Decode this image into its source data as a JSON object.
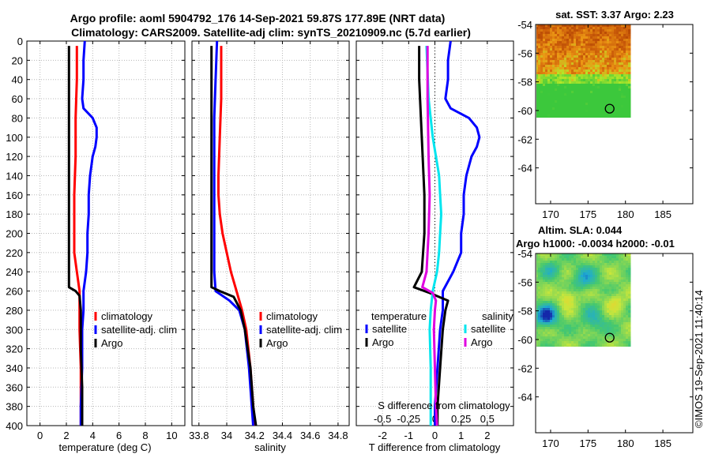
{
  "title": {
    "line1": "Argo profile: aoml 5904792_176 14-Sep-2021 59.87S 177.89E (NRT data)",
    "line2": "Climatology: CARS2009. Satellite-adj clim: synTS_20210909.nc (5.7d earlier)"
  },
  "copyright": "©IMOS 19-Sep-2021 11:40:14",
  "colors": {
    "climatology": "#ff0000",
    "satellite": "#0000ff",
    "argo": "#000000",
    "sat_salinity": "#00e5ee",
    "argo_salinity": "#e000e0"
  },
  "chart_data": [
    {
      "type": "line",
      "name": "temperature",
      "xlabel": "temperature (deg C)",
      "ylabel": "",
      "xlim": [
        -1,
        11
      ],
      "ylim": [
        0,
        400
      ],
      "xticks": [
        0,
        2,
        4,
        6,
        8,
        10
      ],
      "yticks": [
        0,
        20,
        40,
        60,
        80,
        100,
        120,
        140,
        160,
        180,
        200,
        220,
        240,
        260,
        280,
        300,
        320,
        340,
        360,
        380,
        400
      ],
      "grid": true,
      "legend": {
        "position": "middle-right",
        "entries": [
          "climatology",
          "satellite-adj. clim",
          "Argo"
        ]
      },
      "series": [
        {
          "name": "climatology",
          "color": "#ff0000",
          "points": [
            [
              2.8,
              5
            ],
            [
              2.8,
              40
            ],
            [
              2.7,
              80
            ],
            [
              2.7,
              120
            ],
            [
              2.6,
              160
            ],
            [
              2.6,
              200
            ],
            [
              2.6,
              220
            ],
            [
              2.8,
              240
            ],
            [
              3.0,
              260
            ],
            [
              3.0,
              280
            ],
            [
              3.0,
              300
            ],
            [
              3.1,
              340
            ],
            [
              3.1,
              380
            ],
            [
              3.1,
              400
            ]
          ]
        },
        {
          "name": "satellite-adj. clim",
          "color": "#0000ff",
          "points": [
            [
              3.4,
              0
            ],
            [
              3.3,
              20
            ],
            [
              3.3,
              40
            ],
            [
              3.2,
              60
            ],
            [
              3.3,
              70
            ],
            [
              4.0,
              80
            ],
            [
              4.3,
              90
            ],
            [
              4.3,
              100
            ],
            [
              4.2,
              110
            ],
            [
              4.0,
              120
            ],
            [
              3.8,
              140
            ],
            [
              3.7,
              160
            ],
            [
              3.7,
              180
            ],
            [
              3.6,
              200
            ],
            [
              3.6,
              220
            ],
            [
              3.5,
              240
            ],
            [
              3.3,
              260
            ],
            [
              3.3,
              280
            ],
            [
              3.2,
              300
            ],
            [
              3.2,
              340
            ],
            [
              3.1,
              380
            ],
            [
              3.1,
              400
            ]
          ]
        },
        {
          "name": "Argo",
          "color": "#000000",
          "points": [
            [
              2.2,
              5
            ],
            [
              2.2,
              100
            ],
            [
              2.2,
              200
            ],
            [
              2.2,
              250
            ],
            [
              2.2,
              256
            ],
            [
              2.7,
              260
            ],
            [
              3.0,
              265
            ],
            [
              3.1,
              280
            ],
            [
              3.1,
              320
            ],
            [
              3.2,
              360
            ],
            [
              3.2,
              400
            ]
          ]
        }
      ]
    },
    {
      "type": "line",
      "name": "salinity",
      "xlabel": "salinity",
      "ylabel": "",
      "xlim": [
        33.75,
        34.88
      ],
      "ylim": [
        0,
        400
      ],
      "xticks": [
        33.8,
        34,
        34.2,
        34.4,
        34.6,
        34.8
      ],
      "xtick_labels": [
        "33.8",
        "34",
        "34.2",
        "34.4",
        "34.6",
        "34.8"
      ],
      "grid": true,
      "legend": {
        "position": "middle-right",
        "entries": [
          "climatology",
          "satellite-adj. clim",
          "Argo"
        ]
      },
      "series": [
        {
          "name": "climatology",
          "color": "#ff0000",
          "points": [
            [
              33.96,
              5
            ],
            [
              33.96,
              60
            ],
            [
              33.95,
              100
            ],
            [
              33.94,
              140
            ],
            [
              33.94,
              160
            ],
            [
              33.95,
              180
            ],
            [
              33.97,
              200
            ],
            [
              34.0,
              220
            ],
            [
              34.03,
              240
            ],
            [
              34.07,
              260
            ],
            [
              34.11,
              280
            ],
            [
              34.14,
              300
            ],
            [
              34.17,
              340
            ],
            [
              34.19,
              380
            ],
            [
              34.2,
              400
            ]
          ]
        },
        {
          "name": "satellite-adj. clim",
          "color": "#0000ff",
          "points": [
            [
              33.93,
              0
            ],
            [
              33.92,
              40
            ],
            [
              33.91,
              80
            ],
            [
              33.91,
              140
            ],
            [
              33.91,
              200
            ],
            [
              33.91,
              240
            ],
            [
              33.92,
              260
            ],
            [
              34.02,
              270
            ],
            [
              34.09,
              280
            ],
            [
              34.13,
              300
            ],
            [
              34.16,
              340
            ],
            [
              34.18,
              380
            ],
            [
              34.19,
              400
            ]
          ]
        },
        {
          "name": "Argo",
          "color": "#000000",
          "points": [
            [
              33.89,
              5
            ],
            [
              33.89,
              60
            ],
            [
              33.89,
              120
            ],
            [
              33.89,
              200
            ],
            [
              33.89,
              250
            ],
            [
              33.89,
              256
            ],
            [
              33.95,
              260
            ],
            [
              34.05,
              266
            ],
            [
              34.1,
              280
            ],
            [
              34.13,
              300
            ],
            [
              34.17,
              340
            ],
            [
              34.19,
              380
            ],
            [
              34.21,
              400
            ]
          ]
        }
      ]
    },
    {
      "type": "line",
      "name": "difference",
      "xlabel": "T difference from climatology",
      "xlabel_top": "S difference from climatology",
      "xlim": [
        -3,
        3
      ],
      "ylim": [
        0,
        400
      ],
      "xticks": [
        -2,
        -1,
        0,
        1,
        2
      ],
      "xticks_salinity": [
        -0.5,
        -0.25,
        0,
        0.25,
        0.5
      ],
      "xtick_labels_salinity": [
        "-0.5",
        "-0.25",
        "0",
        "0.25",
        "0.5"
      ],
      "grid": true,
      "legend": {
        "position": "middle",
        "entries_temperature": [
          "satellite",
          "Argo"
        ],
        "entries_salinity": [
          "satellite",
          "Argo"
        ],
        "head_temperature": "temperature",
        "head_salinity": "salinity"
      },
      "series": [
        {
          "name": "T satellite",
          "color": "#0000ff",
          "points": [
            [
              0.6,
              0
            ],
            [
              0.5,
              20
            ],
            [
              0.5,
              40
            ],
            [
              0.4,
              60
            ],
            [
              0.6,
              70
            ],
            [
              1.3,
              80
            ],
            [
              1.6,
              90
            ],
            [
              1.7,
              100
            ],
            [
              1.6,
              110
            ],
            [
              1.4,
              120
            ],
            [
              1.2,
              140
            ],
            [
              1.1,
              160
            ],
            [
              1.1,
              180
            ],
            [
              1.0,
              200
            ],
            [
              1.0,
              220
            ],
            [
              0.7,
              240
            ],
            [
              0.3,
              260
            ],
            [
              0.3,
              280
            ],
            [
              0.2,
              300
            ],
            [
              0.1,
              340
            ],
            [
              0.0,
              380
            ],
            [
              0.0,
              400
            ]
          ]
        },
        {
          "name": "T Argo",
          "color": "#000000",
          "points": [
            [
              -0.6,
              5
            ],
            [
              -0.6,
              40
            ],
            [
              -0.5,
              100
            ],
            [
              -0.4,
              160
            ],
            [
              -0.4,
              200
            ],
            [
              -0.5,
              240
            ],
            [
              -0.8,
              256
            ],
            [
              -0.2,
              262
            ],
            [
              0.5,
              270
            ],
            [
              0.4,
              280
            ],
            [
              0.3,
              300
            ],
            [
              0.2,
              340
            ],
            [
              0.1,
              380
            ],
            [
              0.1,
              400
            ]
          ]
        },
        {
          "name": "S satellite",
          "color": "#00e5ee",
          "points": [
            [
              -0.08,
              5
            ],
            [
              -0.06,
              60
            ],
            [
              -0.02,
              100
            ],
            [
              0.04,
              140
            ],
            [
              0.05,
              160
            ],
            [
              0.06,
              180
            ],
            [
              0.05,
              200
            ],
            [
              0.04,
              220
            ],
            [
              0.02,
              240
            ],
            [
              -0.02,
              260
            ],
            [
              -0.04,
              280
            ],
            [
              -0.05,
              300
            ],
            [
              -0.04,
              340
            ],
            [
              -0.04,
              380
            ],
            [
              -0.04,
              400
            ]
          ]
        },
        {
          "name": "S Argo",
          "color": "#e000e0",
          "points": [
            [
              -0.07,
              5
            ],
            [
              -0.07,
              60
            ],
            [
              -0.06,
              120
            ],
            [
              -0.05,
              160
            ],
            [
              -0.06,
              200
            ],
            [
              -0.08,
              240
            ],
            [
              -0.12,
              256
            ],
            [
              -0.02,
              262
            ],
            [
              0.01,
              270
            ],
            [
              0.0,
              280
            ],
            [
              -0.01,
              300
            ],
            [
              0.0,
              340
            ],
            [
              0.01,
              380
            ],
            [
              0.02,
              400
            ]
          ]
        }
      ]
    },
    {
      "type": "heatmap",
      "name": "sst",
      "title": "sat. SST: 3.37 Argo: 2.23",
      "xlim": [
        168,
        189
      ],
      "ylim": [
        -66.5,
        -54
      ],
      "xticks": [
        170,
        175,
        180,
        185
      ],
      "yticks": [
        -54,
        -56,
        -58,
        -60,
        -62,
        -64
      ],
      "argo_position": [
        177.89,
        -59.87
      ]
    },
    {
      "type": "heatmap",
      "name": "sla",
      "title": "Altim. SLA: 0.044",
      "subtitle": "Argo h1000: -0.0034 h2000: -0.01",
      "xlim": [
        168,
        189
      ],
      "ylim": [
        -66.5,
        -54
      ],
      "xticks": [
        170,
        175,
        180,
        185
      ],
      "yticks": [
        -54,
        -56,
        -58,
        -60,
        -62,
        -64
      ],
      "argo_position": [
        177.89,
        -59.87
      ]
    }
  ]
}
